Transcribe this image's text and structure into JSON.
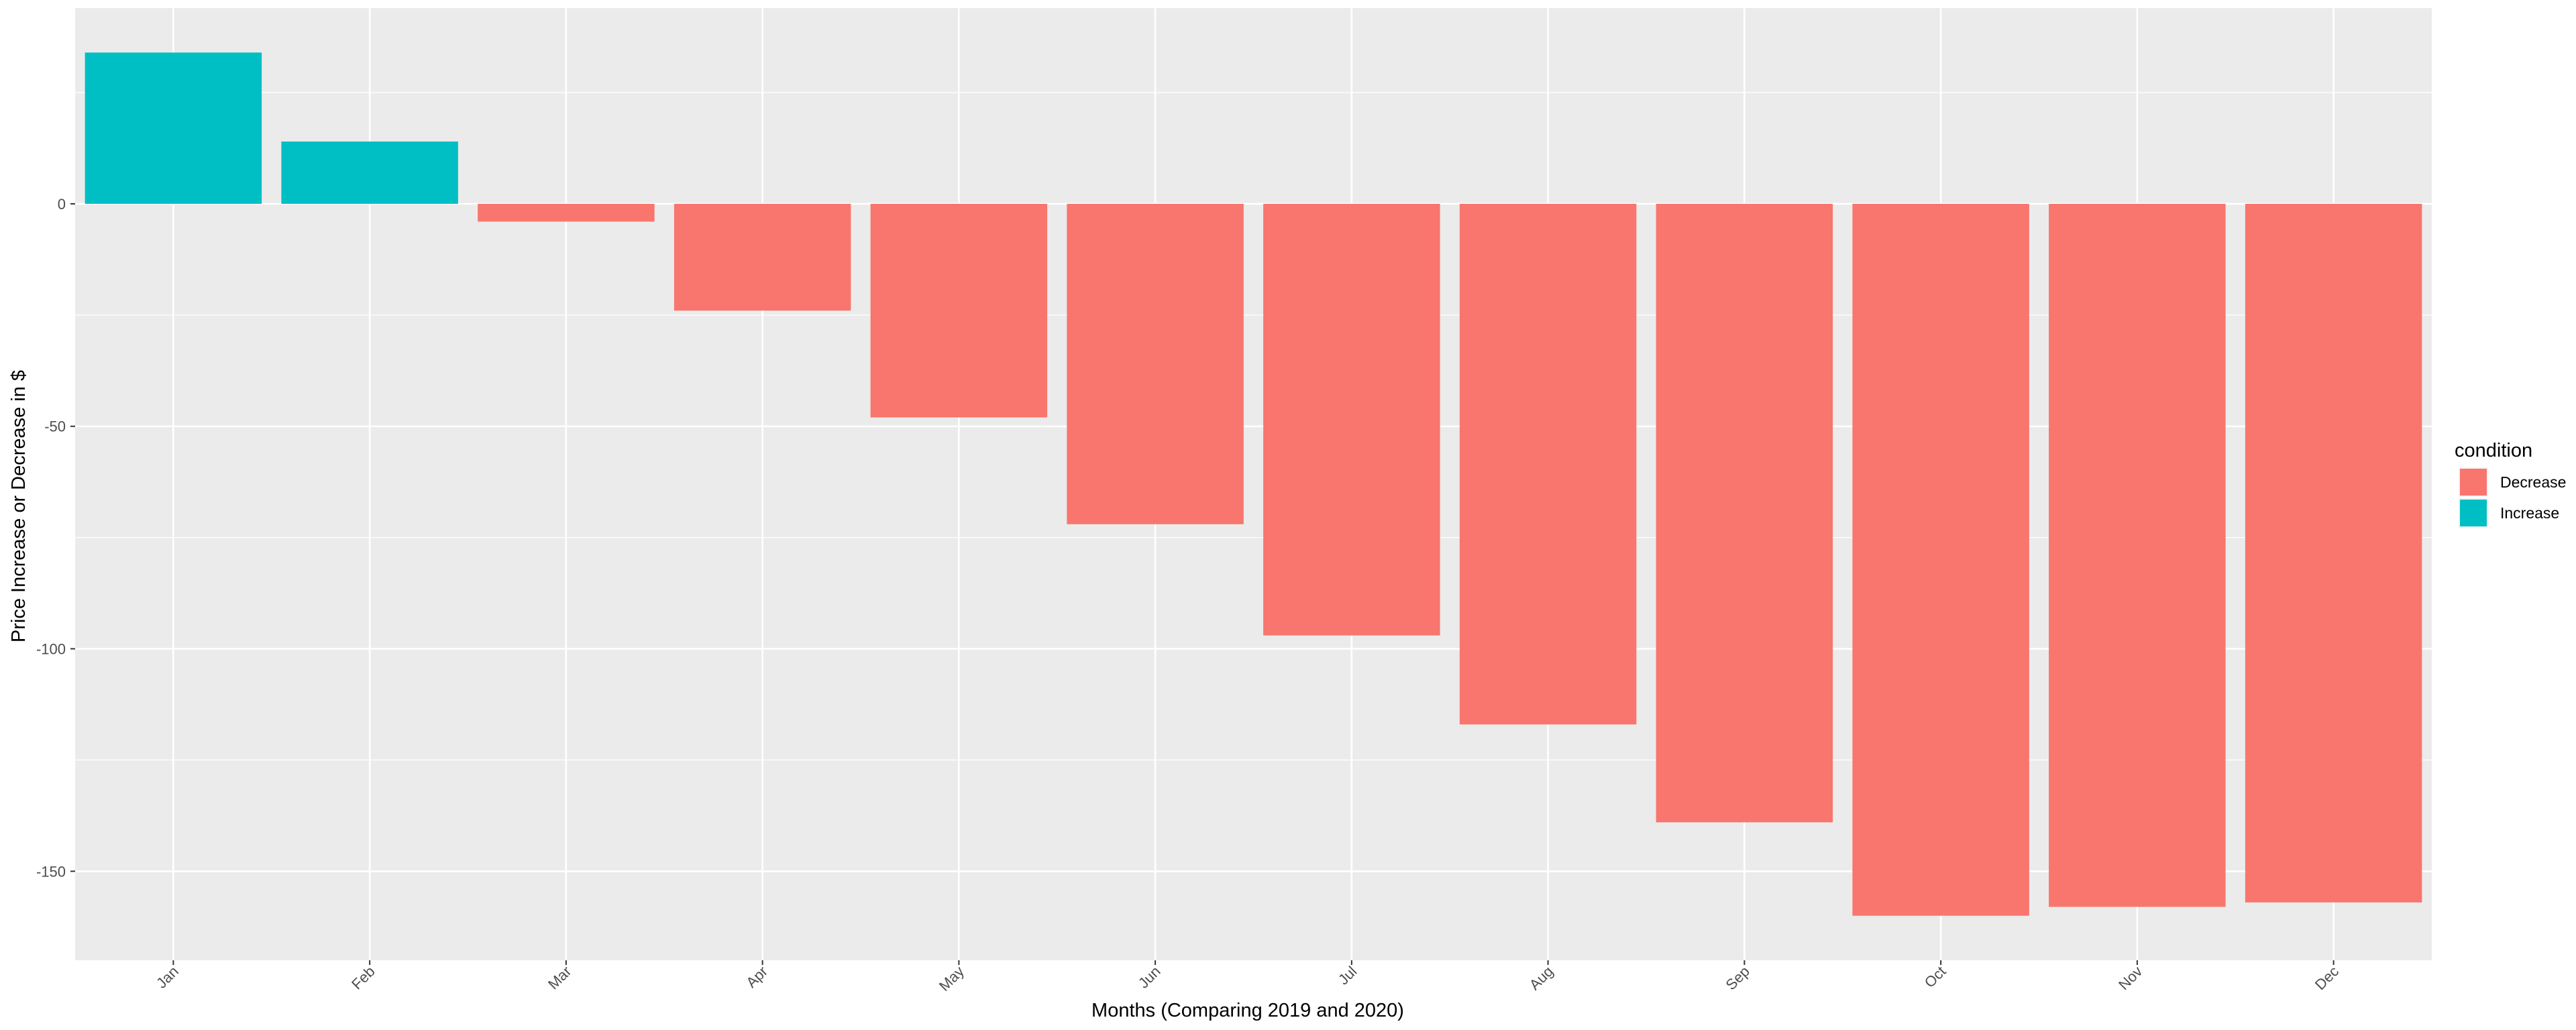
{
  "chart_data": {
    "type": "bar",
    "title": "",
    "xlabel": "Months (Comparing 2019 and 2020)",
    "ylabel": "Price Increase or Decrease in $",
    "categories": [
      "Jan",
      "Feb",
      "Mar",
      "Apr",
      "May",
      "Jun",
      "Jul",
      "Aug",
      "Sep",
      "Oct",
      "Nov",
      "Dec"
    ],
    "values": [
      34,
      14,
      -4,
      -24,
      -48,
      -72,
      -97,
      -117,
      -139,
      -160,
      -158,
      -157
    ],
    "condition": [
      "Increase",
      "Increase",
      "Decrease",
      "Decrease",
      "Decrease",
      "Decrease",
      "Decrease",
      "Decrease",
      "Decrease",
      "Decrease",
      "Decrease",
      "Decrease"
    ],
    "ylim": [
      -170,
      44
    ],
    "yticks": [
      0,
      -50,
      -100,
      -150
    ],
    "ytick_labels": [
      "0",
      "-50",
      "-100",
      "-150"
    ],
    "grid": true,
    "legend": {
      "title": "condition",
      "position": "right",
      "entries": [
        {
          "label": "Decrease",
          "color": "#F8766D"
        },
        {
          "label": "Increase",
          "color": "#00BFC4"
        }
      ]
    },
    "colors": {
      "Decrease": "#F8766D",
      "Increase": "#00BFC4",
      "panel": "#EBEBEB",
      "grid": "#FFFFFF"
    }
  }
}
